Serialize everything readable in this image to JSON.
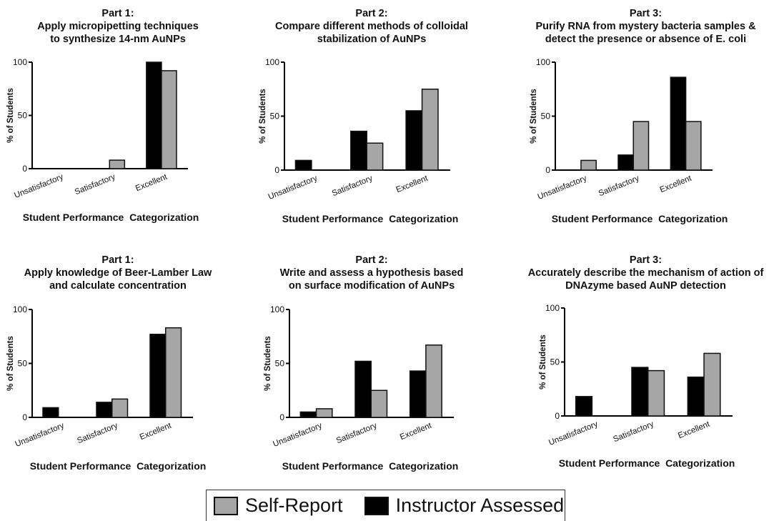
{
  "colors": {
    "self_report": "#a6a6a6",
    "instructor": "#000000",
    "axis": "#000000"
  },
  "legend": {
    "self_report_label": "Self-Report",
    "instructor_label": "Instructor Assessed"
  },
  "chart_data": [
    {
      "type": "bar",
      "title_lines": [
        "Part 1:",
        "Apply micropipetting techniques",
        "to synthesize 14-nm AuNPs"
      ],
      "categories": [
        "Unsatisfactory",
        "Satisfactory",
        "Excellent"
      ],
      "series": [
        {
          "name": "Instructor Assessed",
          "values": [
            0,
            0,
            100
          ]
        },
        {
          "name": "Self-Report",
          "values": [
            0,
            8,
            92
          ]
        }
      ],
      "xlabel": "Student Performance  Categorization",
      "ylabel": "% of Students",
      "ylim": [
        0,
        100
      ],
      "yticks": [
        "0",
        "50",
        "100"
      ]
    },
    {
      "type": "bar",
      "title_lines": [
        "Part 2:",
        "Compare different methods of colloidal",
        "stabilization of AuNPs"
      ],
      "categories": [
        "Unsatisfactory",
        "Satisfactory",
        "Excellent"
      ],
      "series": [
        {
          "name": "Instructor Assessed",
          "values": [
            9,
            36,
            55
          ]
        },
        {
          "name": "Self-Report",
          "values": [
            0,
            25,
            75
          ]
        }
      ],
      "xlabel": "Student Performance  Categorization",
      "ylabel": "% of Students",
      "ylim": [
        0,
        100
      ],
      "yticks": [
        "0",
        "50",
        "100"
      ]
    },
    {
      "type": "bar",
      "title_lines": [
        "Part 3:",
        "Purify RNA from mystery bacteria samples &",
        "detect the presence or absence of E. coli"
      ],
      "categories": [
        "Unsatisfactory",
        "Satisfactory",
        "Excellent"
      ],
      "series": [
        {
          "name": "Instructor Assessed",
          "values": [
            0,
            14,
            86
          ]
        },
        {
          "name": "Self-Report",
          "values": [
            9,
            45,
            45
          ]
        }
      ],
      "xlabel": "Student Performance  Categorization",
      "ylabel": "% of Students",
      "ylim": [
        0,
        100
      ],
      "yticks": [
        "0",
        "50",
        "100"
      ]
    },
    {
      "type": "bar",
      "title_lines": [
        "Part 1:",
        "Apply knowledge of Beer-Lamber Law",
        "and calculate concentration"
      ],
      "categories": [
        "Unsatisfactory",
        "Satisfactory",
        "Excellent"
      ],
      "series": [
        {
          "name": "Instructor Assessed",
          "values": [
            9,
            14,
            77
          ]
        },
        {
          "name": "Self-Report",
          "values": [
            0,
            17,
            83
          ]
        }
      ],
      "xlabel": "Student Performance  Categorization",
      "ylabel": "% of Students",
      "ylim": [
        0,
        100
      ],
      "yticks": [
        "0",
        "50",
        "100"
      ]
    },
    {
      "type": "bar",
      "title_lines": [
        "Part 2:",
        "Write and assess a hypothesis based",
        "on surface modification of AuNPs"
      ],
      "categories": [
        "Unsatisfactory",
        "Satisfactory",
        "Excellent"
      ],
      "series": [
        {
          "name": "Instructor Assessed",
          "values": [
            5,
            52,
            43
          ]
        },
        {
          "name": "Self-Report",
          "values": [
            8,
            25,
            67
          ]
        }
      ],
      "xlabel": "Student Performance  Categorization",
      "ylabel": "% of Students",
      "ylim": [
        0,
        100
      ],
      "yticks": [
        "0",
        "50",
        "100"
      ]
    },
    {
      "type": "bar",
      "title_lines": [
        "Part 3:",
        "Accurately describe the mechanism of action of",
        "DNAzyme based AuNP detection"
      ],
      "categories": [
        "Unsatisfactory",
        "Satisfactory",
        "Excellent"
      ],
      "series": [
        {
          "name": "Instructor Assessed",
          "values": [
            18,
            45,
            36
          ]
        },
        {
          "name": "Self-Report",
          "values": [
            0,
            42,
            58
          ]
        }
      ],
      "xlabel": "Student Performance  Categorization",
      "ylabel": "% of Students",
      "ylim": [
        0,
        100
      ],
      "yticks": [
        "0",
        "50",
        "100"
      ]
    }
  ]
}
